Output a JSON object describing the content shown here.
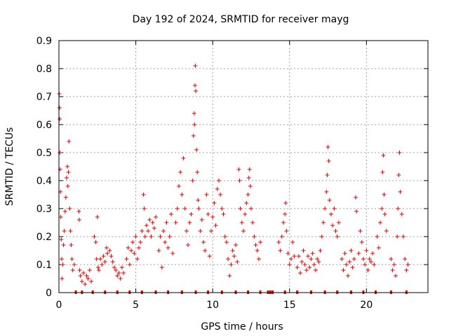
{
  "chart_data": {
    "type": "scatter",
    "title": "Day 192 of 2024, SRMTID for receiver mayg",
    "xlabel": "GPS time / hours",
    "ylabel": "SRMTID / TECUs",
    "xlim": [
      0,
      24
    ],
    "ylim": [
      0,
      0.9
    ],
    "xticks": [
      "0",
      "5",
      "10",
      "15",
      "20"
    ],
    "yticks": [
      "0",
      "0.1",
      "0.2",
      "0.3",
      "0.4",
      "0.5",
      "0.6",
      "0.7",
      "0.8",
      "0.9"
    ],
    "grid": true,
    "series_color": "#e00000",
    "zero_markers_x": [
      1.1,
      1.5,
      2.2,
      3.0,
      3.8,
      4.6,
      5.4,
      6.3,
      7.1,
      8.0,
      8.9,
      9.7,
      10.6,
      11.5,
      12.3,
      13.1,
      13.6,
      13.75,
      13.9,
      14.7,
      15.5,
      16.4,
      17.3,
      18.1,
      19.0,
      19.8,
      20.6,
      21.6,
      22.6
    ],
    "points": [
      {
        "x": 0.02,
        "y": 0.71
      },
      {
        "x": 0.04,
        "y": 0.66
      },
      {
        "x": 0.05,
        "y": 0.62
      },
      {
        "x": 0.06,
        "y": 0.5
      },
      {
        "x": 0.08,
        "y": 0.44
      },
      {
        "x": 0.1,
        "y": 0.36
      },
      {
        "x": 0.12,
        "y": 0.27
      },
      {
        "x": 0.15,
        "y": 0.19
      },
      {
        "x": 0.18,
        "y": 0.12
      },
      {
        "x": 0.2,
        "y": 0.05
      },
      {
        "x": 0.25,
        "y": 0.1
      },
      {
        "x": 0.3,
        "y": 0.17
      },
      {
        "x": 0.35,
        "y": 0.22
      },
      {
        "x": 0.4,
        "y": 0.29
      },
      {
        "x": 0.45,
        "y": 0.34
      },
      {
        "x": 0.5,
        "y": 0.41
      },
      {
        "x": 0.55,
        "y": 0.45
      },
      {
        "x": 0.58,
        "y": 0.38
      },
      {
        "x": 0.62,
        "y": 0.43
      },
      {
        "x": 0.65,
        "y": 0.54
      },
      {
        "x": 0.7,
        "y": 0.3
      },
      {
        "x": 0.75,
        "y": 0.22
      },
      {
        "x": 0.8,
        "y": 0.17
      },
      {
        "x": 0.85,
        "y": 0.12
      },
      {
        "x": 0.9,
        "y": 0.08
      },
      {
        "x": 1.0,
        "y": 0.1
      },
      {
        "x": 1.3,
        "y": 0.29
      },
      {
        "x": 1.32,
        "y": 0.26
      },
      {
        "x": 1.35,
        "y": 0.08
      },
      {
        "x": 1.4,
        "y": 0.06
      },
      {
        "x": 1.5,
        "y": 0.04
      },
      {
        "x": 1.6,
        "y": 0.07
      },
      {
        "x": 1.7,
        "y": 0.03
      },
      {
        "x": 1.8,
        "y": 0.06
      },
      {
        "x": 1.9,
        "y": 0.05
      },
      {
        "x": 2.0,
        "y": 0.08
      },
      {
        "x": 2.1,
        "y": 0.04
      },
      {
        "x": 2.3,
        "y": 0.2
      },
      {
        "x": 2.4,
        "y": 0.18
      },
      {
        "x": 2.45,
        "y": 0.12
      },
      {
        "x": 2.5,
        "y": 0.27
      },
      {
        "x": 2.55,
        "y": 0.09
      },
      {
        "x": 2.6,
        "y": 0.08
      },
      {
        "x": 2.7,
        "y": 0.12
      },
      {
        "x": 2.8,
        "y": 0.1
      },
      {
        "x": 2.9,
        "y": 0.13
      },
      {
        "x": 3.0,
        "y": 0.11
      },
      {
        "x": 3.1,
        "y": 0.16
      },
      {
        "x": 3.15,
        "y": 0.14
      },
      {
        "x": 3.3,
        "y": 0.15
      },
      {
        "x": 3.4,
        "y": 0.13
      },
      {
        "x": 3.5,
        "y": 0.11
      },
      {
        "x": 3.6,
        "y": 0.09
      },
      {
        "x": 3.7,
        "y": 0.08
      },
      {
        "x": 3.8,
        "y": 0.06
      },
      {
        "x": 3.9,
        "y": 0.07
      },
      {
        "x": 4.0,
        "y": 0.05
      },
      {
        "x": 4.1,
        "y": 0.09
      },
      {
        "x": 4.2,
        "y": 0.07
      },
      {
        "x": 4.4,
        "y": 0.12
      },
      {
        "x": 4.5,
        "y": 0.16
      },
      {
        "x": 4.6,
        "y": 0.1
      },
      {
        "x": 4.7,
        "y": 0.15
      },
      {
        "x": 4.8,
        "y": 0.18
      },
      {
        "x": 4.9,
        "y": 0.14
      },
      {
        "x": 5.0,
        "y": 0.2
      },
      {
        "x": 5.1,
        "y": 0.12
      },
      {
        "x": 5.2,
        "y": 0.16
      },
      {
        "x": 5.3,
        "y": 0.18
      },
      {
        "x": 5.4,
        "y": 0.22
      },
      {
        "x": 5.5,
        "y": 0.35
      },
      {
        "x": 5.55,
        "y": 0.3
      },
      {
        "x": 5.6,
        "y": 0.2
      },
      {
        "x": 5.7,
        "y": 0.24
      },
      {
        "x": 5.8,
        "y": 0.22
      },
      {
        "x": 5.9,
        "y": 0.26
      },
      {
        "x": 6.0,
        "y": 0.2
      },
      {
        "x": 6.1,
        "y": 0.25
      },
      {
        "x": 6.2,
        "y": 0.23
      },
      {
        "x": 6.3,
        "y": 0.27
      },
      {
        "x": 6.5,
        "y": 0.15
      },
      {
        "x": 6.6,
        "y": 0.2
      },
      {
        "x": 6.7,
        "y": 0.09
      },
      {
        "x": 6.8,
        "y": 0.22
      },
      {
        "x": 6.9,
        "y": 0.18
      },
      {
        "x": 7.0,
        "y": 0.25
      },
      {
        "x": 7.1,
        "y": 0.16
      },
      {
        "x": 7.2,
        "y": 0.2
      },
      {
        "x": 7.3,
        "y": 0.28
      },
      {
        "x": 7.4,
        "y": 0.14
      },
      {
        "x": 7.6,
        "y": 0.25
      },
      {
        "x": 7.7,
        "y": 0.3
      },
      {
        "x": 7.8,
        "y": 0.38
      },
      {
        "x": 7.9,
        "y": 0.43
      },
      {
        "x": 8.0,
        "y": 0.35
      },
      {
        "x": 8.1,
        "y": 0.48
      },
      {
        "x": 8.2,
        "y": 0.3
      },
      {
        "x": 8.3,
        "y": 0.22
      },
      {
        "x": 8.4,
        "y": 0.17
      },
      {
        "x": 8.5,
        "y": 0.25
      },
      {
        "x": 8.6,
        "y": 0.28
      },
      {
        "x": 8.7,
        "y": 0.4
      },
      {
        "x": 8.75,
        "y": 0.56
      },
      {
        "x": 8.8,
        "y": 0.64
      },
      {
        "x": 8.82,
        "y": 0.6
      },
      {
        "x": 8.85,
        "y": 0.74
      },
      {
        "x": 8.87,
        "y": 0.81
      },
      {
        "x": 8.9,
        "y": 0.72
      },
      {
        "x": 8.95,
        "y": 0.51
      },
      {
        "x": 9.0,
        "y": 0.43
      },
      {
        "x": 9.05,
        "y": 0.33
      },
      {
        "x": 9.1,
        "y": 0.3
      },
      {
        "x": 9.2,
        "y": 0.22
      },
      {
        "x": 9.3,
        "y": 0.26
      },
      {
        "x": 9.4,
        "y": 0.18
      },
      {
        "x": 9.5,
        "y": 0.15
      },
      {
        "x": 9.6,
        "y": 0.35
      },
      {
        "x": 9.7,
        "y": 0.28
      },
      {
        "x": 9.8,
        "y": 0.13
      },
      {
        "x": 9.9,
        "y": 0.22
      },
      {
        "x": 10.0,
        "y": 0.27
      },
      {
        "x": 10.1,
        "y": 0.32
      },
      {
        "x": 10.2,
        "y": 0.24
      },
      {
        "x": 10.3,
        "y": 0.37
      },
      {
        "x": 10.4,
        "y": 0.4
      },
      {
        "x": 10.5,
        "y": 0.35
      },
      {
        "x": 10.6,
        "y": 0.3
      },
      {
        "x": 10.7,
        "y": 0.28
      },
      {
        "x": 10.8,
        "y": 0.2
      },
      {
        "x": 10.9,
        "y": 0.18
      },
      {
        "x": 11.0,
        "y": 0.12
      },
      {
        "x": 11.1,
        "y": 0.06
      },
      {
        "x": 11.2,
        "y": 0.1
      },
      {
        "x": 11.3,
        "y": 0.15
      },
      {
        "x": 11.4,
        "y": 0.13
      },
      {
        "x": 11.5,
        "y": 0.17
      },
      {
        "x": 11.6,
        "y": 0.11
      },
      {
        "x": 11.7,
        "y": 0.44
      },
      {
        "x": 11.75,
        "y": 0.4
      },
      {
        "x": 11.8,
        "y": 0.3
      },
      {
        "x": 11.9,
        "y": 0.25
      },
      {
        "x": 12.0,
        "y": 0.22
      },
      {
        "x": 12.1,
        "y": 0.28
      },
      {
        "x": 12.2,
        "y": 0.32
      },
      {
        "x": 12.3,
        "y": 0.35
      },
      {
        "x": 12.35,
        "y": 0.41
      },
      {
        "x": 12.4,
        "y": 0.44
      },
      {
        "x": 12.45,
        "y": 0.38
      },
      {
        "x": 12.5,
        "y": 0.3
      },
      {
        "x": 12.6,
        "y": 0.25
      },
      {
        "x": 12.7,
        "y": 0.2
      },
      {
        "x": 12.8,
        "y": 0.17
      },
      {
        "x": 12.9,
        "y": 0.15
      },
      {
        "x": 13.0,
        "y": 0.12
      },
      {
        "x": 13.1,
        "y": 0.18
      },
      {
        "x": 14.3,
        "y": 0.18
      },
      {
        "x": 14.4,
        "y": 0.15
      },
      {
        "x": 14.5,
        "y": 0.2
      },
      {
        "x": 14.6,
        "y": 0.25
      },
      {
        "x": 14.7,
        "y": 0.28
      },
      {
        "x": 14.75,
        "y": 0.32
      },
      {
        "x": 14.8,
        "y": 0.22
      },
      {
        "x": 14.9,
        "y": 0.14
      },
      {
        "x": 15.0,
        "y": 0.1
      },
      {
        "x": 15.1,
        "y": 0.12
      },
      {
        "x": 15.2,
        "y": 0.18
      },
      {
        "x": 15.3,
        "y": 0.13
      },
      {
        "x": 15.5,
        "y": 0.09
      },
      {
        "x": 15.6,
        "y": 0.13
      },
      {
        "x": 15.7,
        "y": 0.07
      },
      {
        "x": 15.8,
        "y": 0.11
      },
      {
        "x": 15.9,
        "y": 0.15
      },
      {
        "x": 16.0,
        "y": 0.1
      },
      {
        "x": 16.1,
        "y": 0.08
      },
      {
        "x": 16.2,
        "y": 0.13
      },
      {
        "x": 16.3,
        "y": 0.09
      },
      {
        "x": 16.4,
        "y": 0.12
      },
      {
        "x": 16.5,
        "y": 0.14
      },
      {
        "x": 16.6,
        "y": 0.1
      },
      {
        "x": 16.7,
        "y": 0.08
      },
      {
        "x": 16.8,
        "y": 0.12
      },
      {
        "x": 16.9,
        "y": 0.11
      },
      {
        "x": 17.0,
        "y": 0.15
      },
      {
        "x": 17.1,
        "y": 0.2
      },
      {
        "x": 17.2,
        "y": 0.25
      },
      {
        "x": 17.3,
        "y": 0.3
      },
      {
        "x": 17.4,
        "y": 0.36
      },
      {
        "x": 17.45,
        "y": 0.42
      },
      {
        "x": 17.5,
        "y": 0.52
      },
      {
        "x": 17.55,
        "y": 0.47
      },
      {
        "x": 17.6,
        "y": 0.33
      },
      {
        "x": 17.7,
        "y": 0.28
      },
      {
        "x": 17.8,
        "y": 0.24
      },
      {
        "x": 17.9,
        "y": 0.3
      },
      {
        "x": 18.0,
        "y": 0.22
      },
      {
        "x": 18.1,
        "y": 0.2
      },
      {
        "x": 18.2,
        "y": 0.25
      },
      {
        "x": 18.4,
        "y": 0.12
      },
      {
        "x": 18.5,
        "y": 0.08
      },
      {
        "x": 18.6,
        "y": 0.14
      },
      {
        "x": 18.7,
        "y": 0.1
      },
      {
        "x": 18.8,
        "y": 0.06
      },
      {
        "x": 18.9,
        "y": 0.11
      },
      {
        "x": 19.0,
        "y": 0.15
      },
      {
        "x": 19.1,
        "y": 0.09
      },
      {
        "x": 19.2,
        "y": 0.12
      },
      {
        "x": 19.3,
        "y": 0.34
      },
      {
        "x": 19.35,
        "y": 0.29
      },
      {
        "x": 19.5,
        "y": 0.14
      },
      {
        "x": 19.6,
        "y": 0.22
      },
      {
        "x": 19.7,
        "y": 0.18
      },
      {
        "x": 19.8,
        "y": 0.12
      },
      {
        "x": 19.9,
        "y": 0.1
      },
      {
        "x": 20.0,
        "y": 0.15
      },
      {
        "x": 20.1,
        "y": 0.08
      },
      {
        "x": 20.2,
        "y": 0.12
      },
      {
        "x": 20.3,
        "y": 0.11
      },
      {
        "x": 20.4,
        "y": 0.14
      },
      {
        "x": 20.5,
        "y": 0.1
      },
      {
        "x": 20.7,
        "y": 0.2
      },
      {
        "x": 20.8,
        "y": 0.16
      },
      {
        "x": 20.9,
        "y": 0.25
      },
      {
        "x": 21.0,
        "y": 0.3
      },
      {
        "x": 21.05,
        "y": 0.43
      },
      {
        "x": 21.1,
        "y": 0.49
      },
      {
        "x": 21.15,
        "y": 0.35
      },
      {
        "x": 21.2,
        "y": 0.28
      },
      {
        "x": 21.3,
        "y": 0.22
      },
      {
        "x": 21.6,
        "y": 0.12
      },
      {
        "x": 21.7,
        "y": 0.08
      },
      {
        "x": 21.8,
        "y": 0.1
      },
      {
        "x": 21.9,
        "y": 0.06
      },
      {
        "x": 22.0,
        "y": 0.2
      },
      {
        "x": 22.05,
        "y": 0.3
      },
      {
        "x": 22.1,
        "y": 0.42
      },
      {
        "x": 22.15,
        "y": 0.5
      },
      {
        "x": 22.2,
        "y": 0.36
      },
      {
        "x": 22.3,
        "y": 0.28
      },
      {
        "x": 22.4,
        "y": 0.2
      },
      {
        "x": 22.5,
        "y": 0.12
      },
      {
        "x": 22.6,
        "y": 0.08
      },
      {
        "x": 22.7,
        "y": 0.1
      }
    ]
  }
}
